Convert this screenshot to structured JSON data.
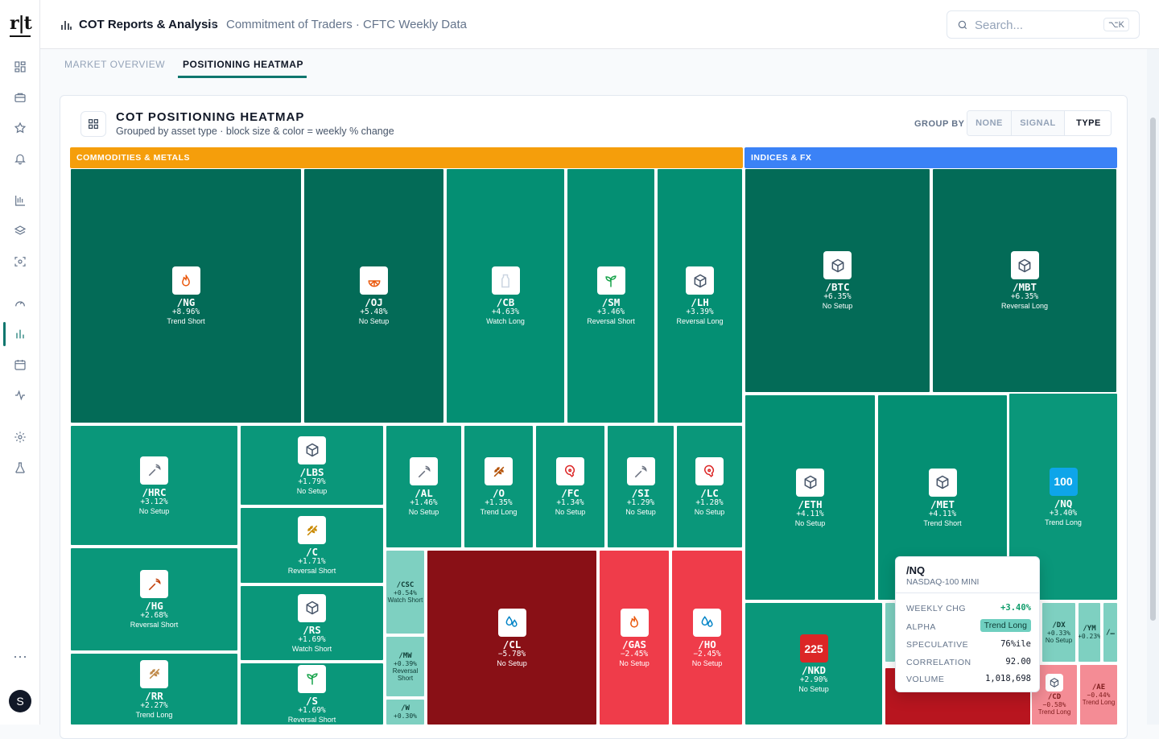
{
  "app": {
    "logo": "r|t",
    "avatar_initial": "S"
  },
  "header": {
    "title": "COT Reports & Analysis",
    "subtitle": "Commitment of Traders · CFTC Weekly Data",
    "search_placeholder": "Search...",
    "shortcut": "⌥K"
  },
  "tabs": [
    {
      "label": "MARKET OVERVIEW",
      "active": false
    },
    {
      "label": "POSITIONING HEATMAP",
      "active": true
    }
  ],
  "card": {
    "title": "COT POSITIONING HEATMAP",
    "subtitle": "Grouped by asset type · block size & color = weekly % change",
    "group_by_label": "GROUP BY",
    "group_options": [
      "NONE",
      "SIGNAL",
      "TYPE"
    ],
    "group_selected": "TYPE"
  },
  "groups": [
    {
      "label": "COMMODITIES & METALS",
      "color": "#f59e0b"
    },
    {
      "label": "INDICES & FX",
      "color": "#3b82f6"
    }
  ],
  "tiles": [
    {
      "sym": "/NG",
      "chg": "+8.96%",
      "sig": "Trend Short",
      "icon": "flame-icon"
    },
    {
      "sym": "/OJ",
      "chg": "+5.48%",
      "sig": "No Setup",
      "icon": "orange-icon"
    },
    {
      "sym": "/CB",
      "chg": "+4.63%",
      "sig": "Watch Long",
      "icon": "milk-icon"
    },
    {
      "sym": "/SM",
      "chg": "+3.46%",
      "sig": "Reversal Short",
      "icon": "sprout-icon"
    },
    {
      "sym": "/LH",
      "chg": "+3.39%",
      "sig": "Reversal Long",
      "icon": "box-icon"
    },
    {
      "sym": "/HRC",
      "chg": "+3.12%",
      "sig": "No Setup",
      "icon": "pickaxe-icon"
    },
    {
      "sym": "/LBS",
      "chg": "+1.79%",
      "sig": "No Setup",
      "icon": "box-icon"
    },
    {
      "sym": "/AL",
      "chg": "+1.46%",
      "sig": "No Setup",
      "icon": "pickaxe-icon"
    },
    {
      "sym": "/O",
      "chg": "+1.35%",
      "sig": "Trend Long",
      "icon": "wheat-icon"
    },
    {
      "sym": "/FC",
      "chg": "+1.34%",
      "sig": "No Setup",
      "icon": "meat-icon"
    },
    {
      "sym": "/SI",
      "chg": "+1.29%",
      "sig": "No Setup",
      "icon": "pickaxe-icon"
    },
    {
      "sym": "/LC",
      "chg": "+1.28%",
      "sig": "No Setup",
      "icon": "meat-icon"
    },
    {
      "sym": "/C",
      "chg": "+1.71%",
      "sig": "Reversal Short",
      "icon": "wheat-icon"
    },
    {
      "sym": "/HG",
      "chg": "+2.68%",
      "sig": "Reversal Short",
      "icon": "pickaxe-icon"
    },
    {
      "sym": "/RS",
      "chg": "+1.69%",
      "sig": "Watch Short",
      "icon": "box-icon"
    },
    {
      "sym": "/CSC",
      "chg": "+0.54%",
      "sig": "Watch Short",
      "icon": ""
    },
    {
      "sym": "/CL",
      "chg": "−5.78%",
      "sig": "No Setup",
      "icon": "droplets-icon"
    },
    {
      "sym": "/GAS",
      "chg": "−2.45%",
      "sig": "No Setup",
      "icon": "flame-icon"
    },
    {
      "sym": "/HO",
      "chg": "−2.45%",
      "sig": "No Setup",
      "icon": "droplets-icon"
    },
    {
      "sym": "/MW",
      "chg": "+0.39%",
      "sig": "Reversal Short",
      "icon": ""
    },
    {
      "sym": "/RR",
      "chg": "+2.27%",
      "sig": "Trend Long",
      "icon": "wheat-icon"
    },
    {
      "sym": "/S",
      "chg": "+1.69%",
      "sig": "Reversal Short",
      "icon": "sprout-icon"
    },
    {
      "sym": "/W",
      "chg": "+0.30%",
      "sig": "",
      "icon": ""
    },
    {
      "sym": "/BTC",
      "chg": "+6.35%",
      "sig": "No Setup",
      "icon": "box-icon"
    },
    {
      "sym": "/MBT",
      "chg": "+6.35%",
      "sig": "Reversal Long",
      "icon": "box-icon"
    },
    {
      "sym": "/ETH",
      "chg": "+4.11%",
      "sig": "No Setup",
      "icon": "box-icon"
    },
    {
      "sym": "/MET",
      "chg": "+4.11%",
      "sig": "Trend Short",
      "icon": "box-icon"
    },
    {
      "sym": "/NQ",
      "chg": "+3.40%",
      "sig": "Trend Long",
      "icon": "badge-100-icon",
      "badge": "100"
    },
    {
      "sym": "/NKD",
      "chg": "+2.90%",
      "sig": "No Setup",
      "icon": "badge-225-icon",
      "badge": "225"
    },
    {
      "sym": "/DX",
      "chg": "+0.33%",
      "sig": "No Setup",
      "icon": ""
    },
    {
      "sym": "/YM",
      "chg": "+0.23%",
      "sig": "",
      "icon": ""
    },
    {
      "sym": "/…",
      "chg": "",
      "sig": "",
      "icon": ""
    },
    {
      "sym": "/CD",
      "chg": "−0.58%",
      "sig": "Trend Long",
      "icon": "box-icon"
    },
    {
      "sym": "/AE",
      "chg": "−0.44%",
      "sig": "Trend Long",
      "icon": ""
    }
  ],
  "tooltip": {
    "sym": "/NQ",
    "name": "NASDAQ-100 MINI",
    "rows": [
      {
        "k": "WEEKLY CHG",
        "v": "+3.40%"
      },
      {
        "k": "ALPHA",
        "v": "Trend Long"
      },
      {
        "k": "SPECULATIVE",
        "v": "76%ile"
      },
      {
        "k": "CORRELATION",
        "v": "92.00"
      },
      {
        "k": "VOLUME",
        "v": "1,018,698"
      }
    ]
  }
}
